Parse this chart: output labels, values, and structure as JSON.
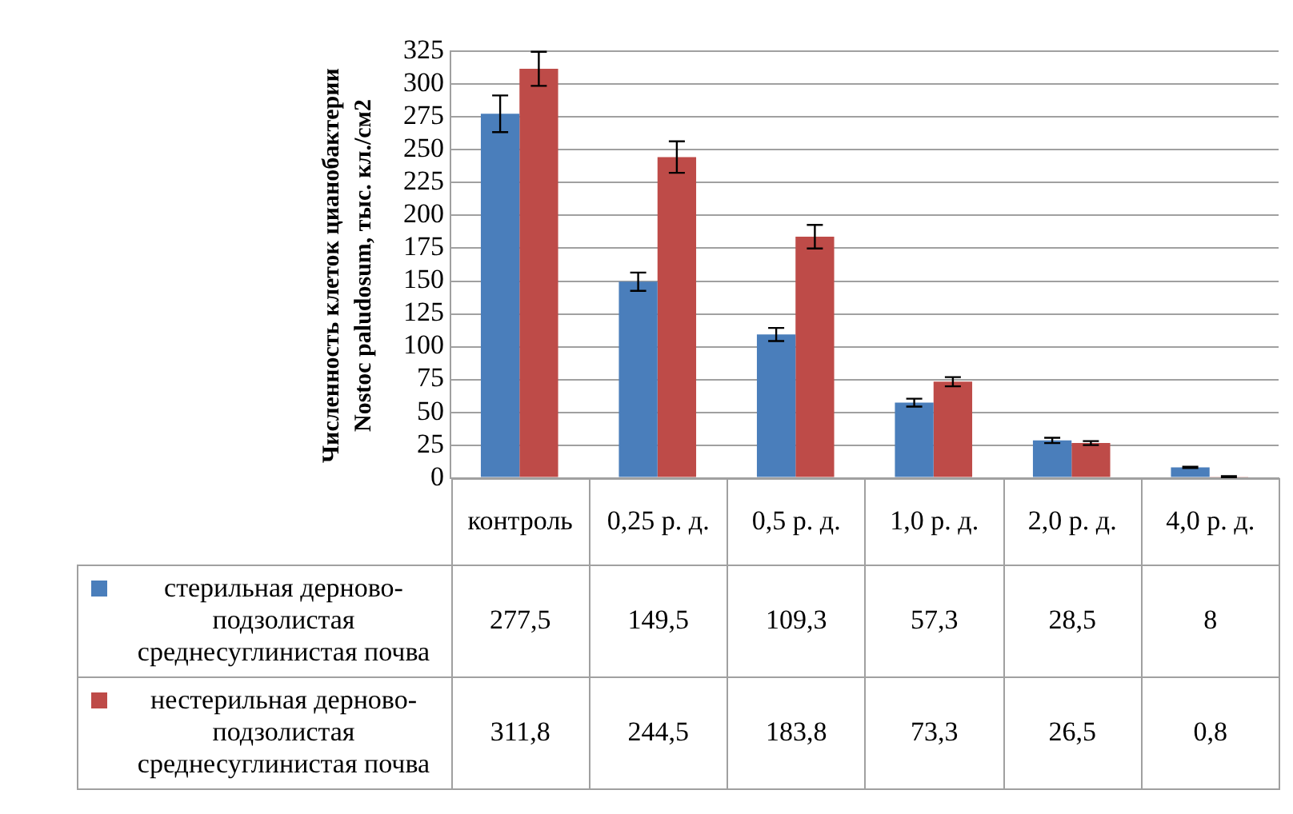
{
  "chart_data": {
    "type": "bar",
    "ylabel": "Численность клеток цианобактерии Nostoc paludosum, тыс. кл./см2",
    "categories": [
      "контроль",
      "0,25 р. д.",
      "0,5 р. д.",
      "1,0 р. д.",
      "2,0 р. д.",
      "4,0 р. д."
    ],
    "series": [
      {
        "name": "стерильная дерново-подзолистая среднесуглинистая почва",
        "color": "#4a7ebb",
        "values": [
          277.5,
          149.5,
          109.3,
          57.3,
          28.5,
          8
        ],
        "errors": [
          14,
          7,
          5,
          3,
          2,
          0.5
        ],
        "value_labels": [
          "277,5",
          "149,5",
          "109,3",
          "57,3",
          "28,5",
          "8"
        ]
      },
      {
        "name": "нестерильная дерново-подзолистая среднесуглинистая почва",
        "color": "#be4b48",
        "values": [
          311.8,
          244.5,
          183.8,
          73.3,
          26.5,
          0.8
        ],
        "errors": [
          13,
          12,
          9,
          3.5,
          1.5,
          0.5
        ],
        "value_labels": [
          "311,8",
          "244,5",
          "183,8",
          "73,3",
          "26,5",
          "0,8"
        ]
      }
    ],
    "ylim": [
      0,
      325
    ],
    "yticks": [
      0,
      25,
      50,
      75,
      100,
      125,
      150,
      175,
      200,
      225,
      250,
      275,
      300,
      325
    ],
    "grid": "y",
    "legend": "bottom"
  }
}
